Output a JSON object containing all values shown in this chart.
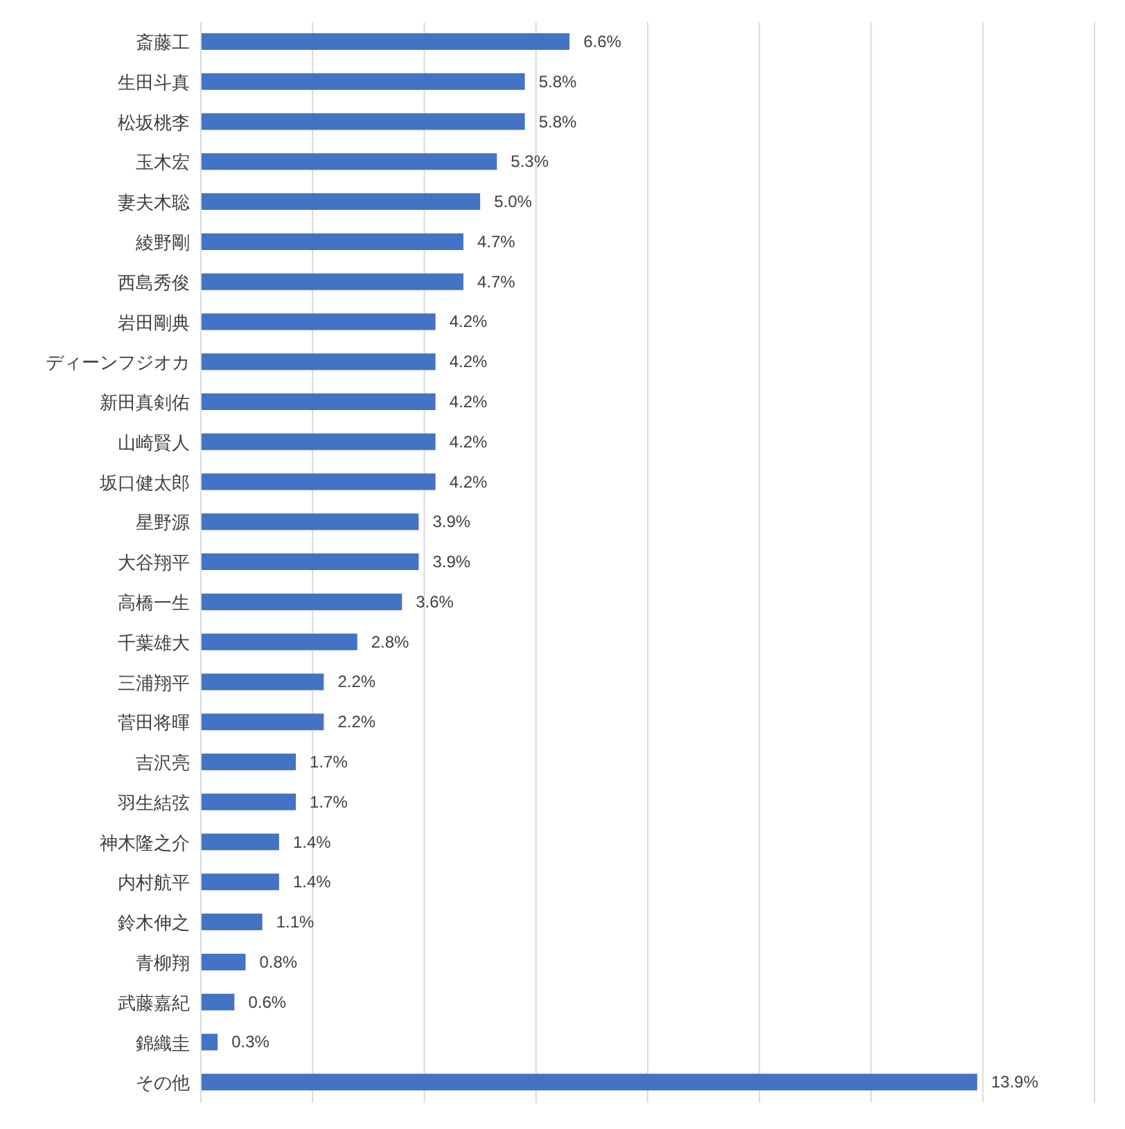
{
  "chart_data": {
    "type": "bar",
    "orientation": "horizontal",
    "categories": [
      "斎藤工",
      "生田斗真",
      "松坂桃李",
      "玉木宏",
      "妻夫木聡",
      "綾野剛",
      "西島秀俊",
      "岩田剛典",
      "ディーンフジオカ",
      "新田真剣佑",
      "山崎賢人",
      "坂口健太郎",
      "星野源",
      "大谷翔平",
      "高橋一生",
      "千葉雄大",
      "三浦翔平",
      "菅田将暉",
      "吉沢亮",
      "羽生結弦",
      "神木隆之介",
      "内村航平",
      "鈴木伸之",
      "青柳翔",
      "武藤嘉紀",
      "錦織圭",
      "その他"
    ],
    "values": [
      6.6,
      5.8,
      5.8,
      5.3,
      5.0,
      4.7,
      4.7,
      4.2,
      4.2,
      4.2,
      4.2,
      4.2,
      3.9,
      3.9,
      3.6,
      2.8,
      2.2,
      2.2,
      1.7,
      1.7,
      1.4,
      1.4,
      1.1,
      0.8,
      0.6,
      0.3,
      13.9
    ],
    "value_labels": [
      "6.6%",
      "5.8%",
      "5.8%",
      "5.3%",
      "5.0%",
      "4.7%",
      "4.7%",
      "4.2%",
      "4.2%",
      "4.2%",
      "4.2%",
      "4.2%",
      "3.9%",
      "3.9%",
      "3.6%",
      "2.8%",
      "2.2%",
      "2.2%",
      "1.7%",
      "1.7%",
      "1.4%",
      "1.4%",
      "1.1%",
      "0.8%",
      "0.6%",
      "0.3%",
      "13.9%"
    ],
    "color": "#4472c4",
    "xlim": [
      0,
      16
    ],
    "xticks": [
      {
        "value": 0,
        "label": null
      },
      {
        "value": 2,
        "label": null
      },
      {
        "value": 4,
        "label": null
      },
      {
        "value": 6,
        "label": null
      },
      {
        "value": 8,
        "label": null
      },
      {
        "value": 10,
        "label": null
      },
      {
        "value": 12,
        "label": null
      },
      {
        "value": 14,
        "label": null
      },
      {
        "value": 16,
        "label": null
      }
    ],
    "grid": "x",
    "tick_labels": "y",
    "legend": false
  }
}
